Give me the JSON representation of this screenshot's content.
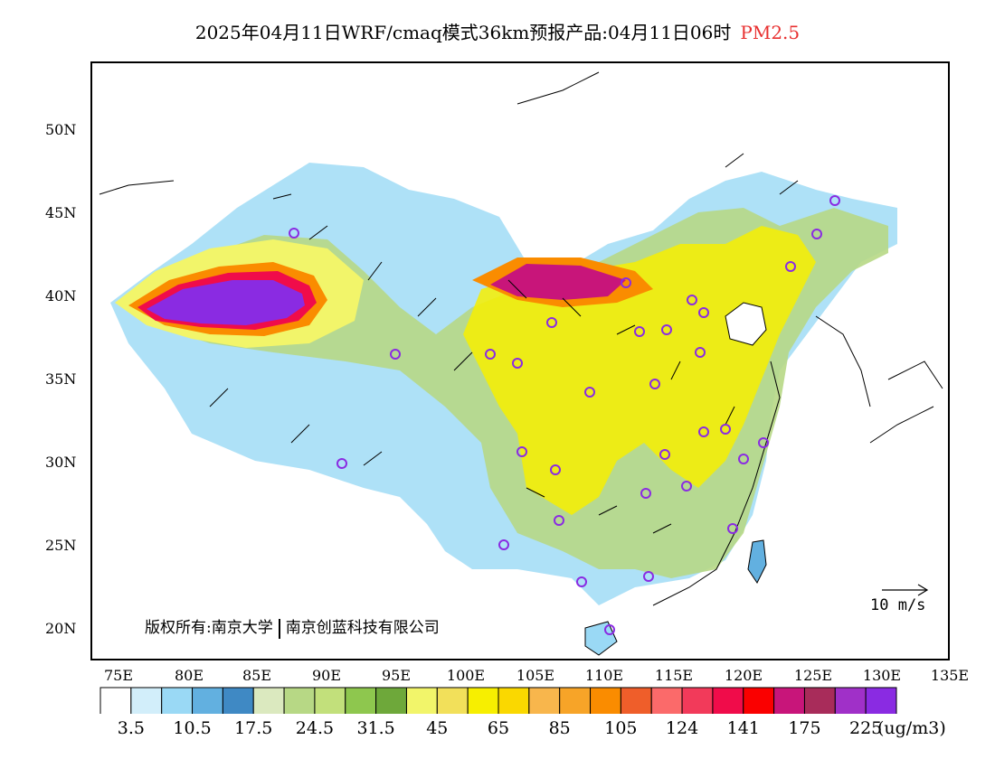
{
  "title": {
    "main": "2025年04月11日WRF/cmaq模式36km预报产品:04月11日06时",
    "species": "PM2.5",
    "species_color": "#e83030"
  },
  "lat_labels": [
    "50N",
    "45N",
    "40N",
    "35N",
    "30N",
    "25N",
    "20N"
  ],
  "lon_labels": [
    "75E",
    "80E",
    "85E",
    "90E",
    "95E",
    "100E",
    "105E",
    "110E",
    "115E",
    "120E",
    "125E",
    "130E",
    "135E"
  ],
  "copyright": {
    "left": "版权所有:南京大学",
    "right": "南京创蓝科技有限公司"
  },
  "wind_reference": {
    "label": "10 m/s"
  },
  "colorbar": {
    "colors": [
      "#ffffff",
      "#d2eefa",
      "#9ad9f5",
      "#62b0e0",
      "#3f89c4",
      "#dbe9bf",
      "#b7d885",
      "#c2e07b",
      "#8ec74e",
      "#6ea83a",
      "#f2f56a",
      "#f2e05a",
      "#f7ef00",
      "#fad800",
      "#f8b64c",
      "#f7a428",
      "#fa8c00",
      "#ef5e2a",
      "#fb6a6a",
      "#f23a5a",
      "#f00c4a",
      "#fa0000",
      "#c8157a",
      "#a82c5a",
      "#a030c8",
      "#8a2be2"
    ],
    "labels": [
      "3.5",
      "10.5",
      "17.5",
      "24.5",
      "31.5",
      "45",
      "65",
      "85",
      "105",
      "124",
      "141",
      "175",
      "225"
    ],
    "unit": "(ug/m3)"
  },
  "concentration_zones": [
    {
      "name": "tarim-basin-core",
      "level": "225+",
      "color": "#8a2be2"
    },
    {
      "name": "inner-mongolia-west",
      "level": "141-225",
      "color": "#c8157a"
    },
    {
      "name": "north-china-plain",
      "level": "45-65",
      "color": "#f7ef00"
    }
  ],
  "monitoring_sites": {
    "marker_color": "#8a2be2"
  }
}
